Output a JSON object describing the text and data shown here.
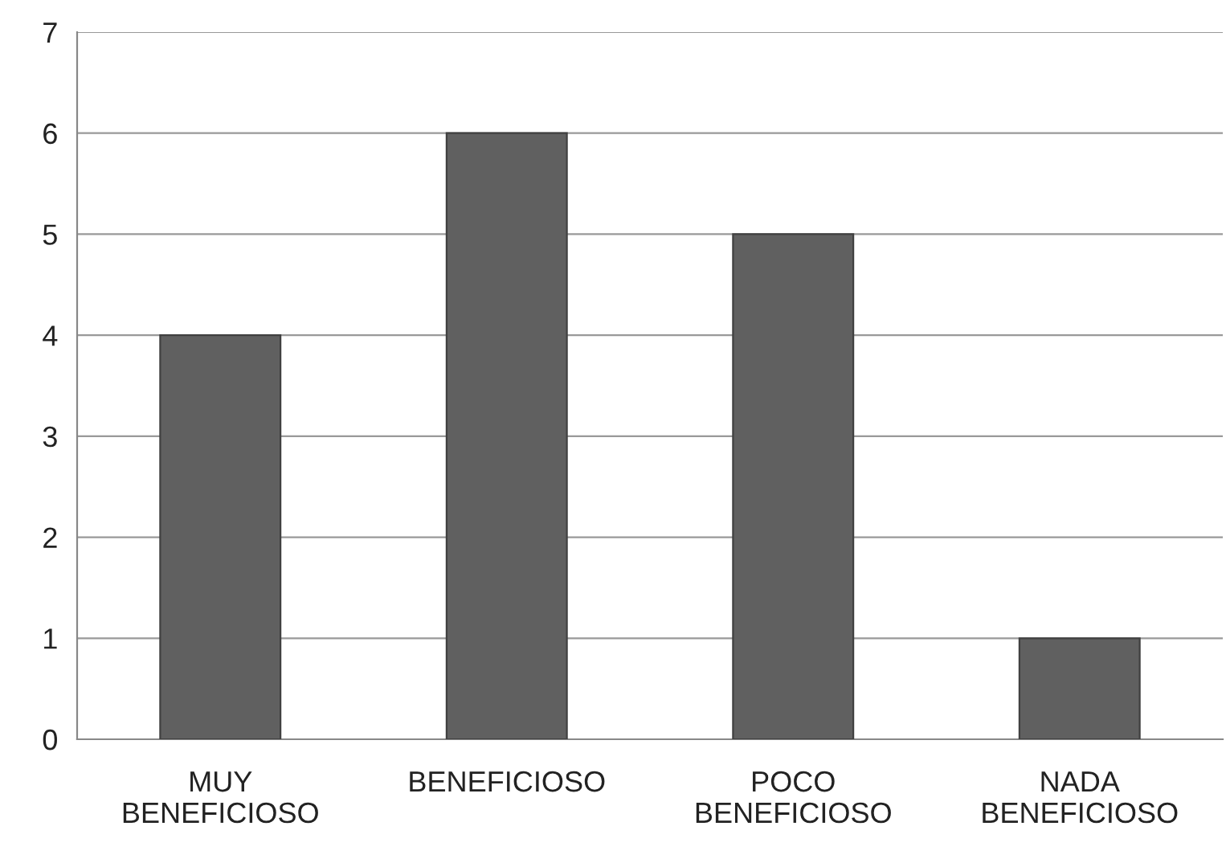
{
  "chart_data": {
    "type": "bar",
    "categories": [
      "MUY\nBENEFICIOSO",
      "BENEFICIOSO",
      "POCO\nBENEFICIOSO",
      "NADA\nBENEFICIOSO"
    ],
    "values": [
      4,
      6,
      5,
      1
    ],
    "color": "#606060",
    "ylim": [
      0,
      7
    ],
    "yticks": [
      0,
      1,
      2,
      3,
      4,
      5,
      6,
      7
    ],
    "grid": "y"
  }
}
